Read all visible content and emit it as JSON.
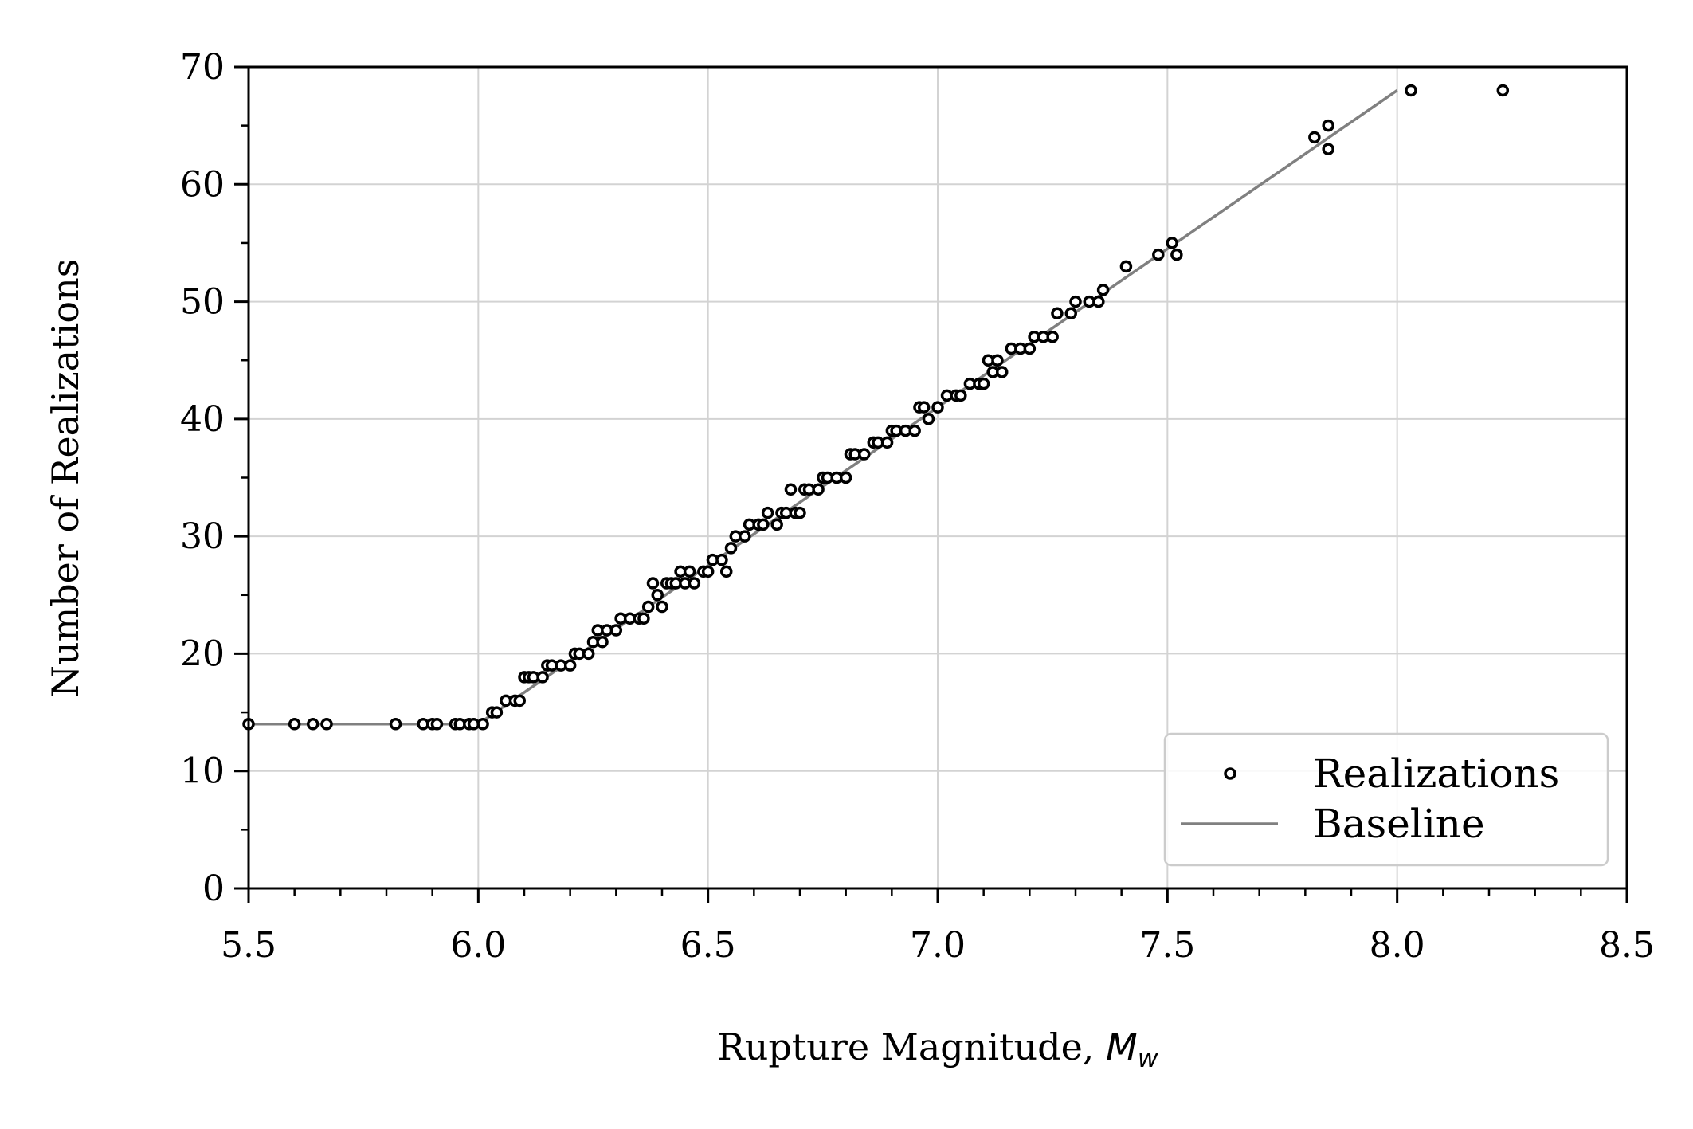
{
  "chart_data": {
    "type": "scatter",
    "title": "",
    "xlabel": "Rupture Magnitude, ",
    "xlabel_math": "M",
    "xlabel_sub": "w",
    "ylabel": "Number of Realizations",
    "xlim": [
      5.5,
      8.5
    ],
    "ylim": [
      0,
      70
    ],
    "x_ticks": [
      "5.5",
      "6.0",
      "6.5",
      "7.0",
      "7.5",
      "8.0",
      "8.5"
    ],
    "y_ticks": [
      "0",
      "10",
      "20",
      "30",
      "40",
      "50",
      "60",
      "70"
    ],
    "grid": true,
    "legend_position": "bottom-right",
    "colors": {
      "realizations": "#000000",
      "baseline": "#808080",
      "grid": "#d3d3d3"
    },
    "series": [
      {
        "name": "Realizations",
        "kind": "scatter",
        "x": [
          5.5,
          5.6,
          5.64,
          5.67,
          5.82,
          5.88,
          5.9,
          5.91,
          5.95,
          5.96,
          5.98,
          5.99,
          6.01,
          6.03,
          6.04,
          6.06,
          6.08,
          6.09,
          6.1,
          6.11,
          6.12,
          6.14,
          6.15,
          6.16,
          6.18,
          6.2,
          6.21,
          6.22,
          6.24,
          6.25,
          6.26,
          6.27,
          6.28,
          6.3,
          6.31,
          6.33,
          6.35,
          6.36,
          6.37,
          6.38,
          6.39,
          6.4,
          6.41,
          6.42,
          6.43,
          6.44,
          6.45,
          6.46,
          6.47,
          6.49,
          6.5,
          6.51,
          6.53,
          6.54,
          6.55,
          6.56,
          6.58,
          6.59,
          6.61,
          6.62,
          6.63,
          6.65,
          6.66,
          6.67,
          6.68,
          6.69,
          6.7,
          6.71,
          6.72,
          6.74,
          6.75,
          6.76,
          6.78,
          6.8,
          6.81,
          6.82,
          6.84,
          6.86,
          6.87,
          6.89,
          6.9,
          6.91,
          6.93,
          6.95,
          6.96,
          6.97,
          6.98,
          7.0,
          7.02,
          7.04,
          7.05,
          7.07,
          7.09,
          7.1,
          7.11,
          7.12,
          7.13,
          7.14,
          7.16,
          7.18,
          7.2,
          7.21,
          7.23,
          7.25,
          7.26,
          7.29,
          7.3,
          7.33,
          7.35,
          7.36,
          7.41,
          7.48,
          7.51,
          7.52,
          7.82,
          7.85,
          7.85,
          8.03,
          8.23
        ],
        "y": [
          14,
          14,
          14,
          14,
          14,
          14,
          14,
          14,
          14,
          14,
          14,
          14,
          14,
          15,
          15,
          16,
          16,
          16,
          18,
          18,
          18,
          18,
          19,
          19,
          19,
          19,
          20,
          20,
          20,
          21,
          22,
          21,
          22,
          22,
          23,
          23,
          23,
          23,
          24,
          26,
          25,
          24,
          26,
          26,
          26,
          27,
          26,
          27,
          26,
          27,
          27,
          28,
          28,
          27,
          29,
          30,
          30,
          31,
          31,
          31,
          32,
          31,
          32,
          32,
          34,
          32,
          32,
          34,
          34,
          34,
          35,
          35,
          35,
          35,
          37,
          37,
          37,
          38,
          38,
          38,
          39,
          39,
          39,
          39,
          41,
          41,
          40,
          41,
          42,
          42,
          42,
          43,
          43,
          43,
          45,
          44,
          45,
          44,
          46,
          46,
          46,
          47,
          47,
          47,
          49,
          49,
          50,
          50,
          50,
          51,
          53,
          54,
          55,
          54,
          64,
          63,
          65,
          68,
          68
        ]
      },
      {
        "name": "Baseline",
        "kind": "line",
        "x": [
          5.5,
          6.0,
          8.0
        ],
        "y": [
          14,
          14,
          68
        ]
      }
    ]
  }
}
